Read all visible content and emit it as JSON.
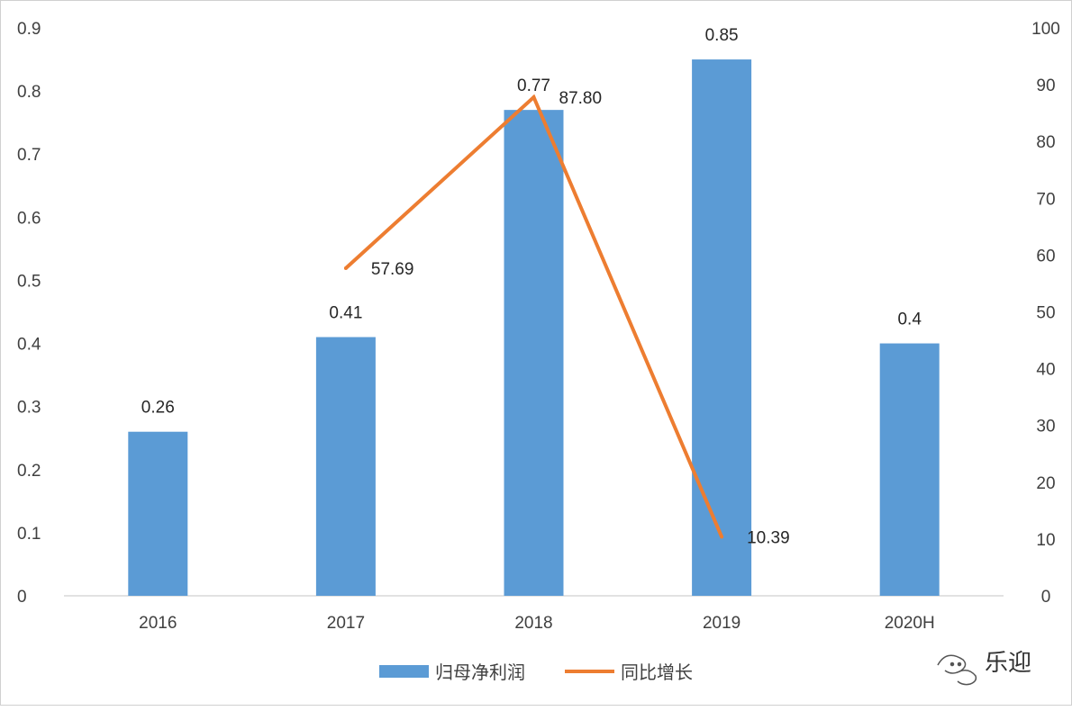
{
  "chart_data": {
    "type": "bar",
    "categories": [
      "2016",
      "2017",
      "2018",
      "2019",
      "2020H"
    ],
    "series": [
      {
        "name": "归母净利润",
        "type": "bar",
        "axis": "left",
        "values": [
          0.26,
          0.41,
          0.77,
          0.85,
          0.4
        ],
        "labels": [
          "0.26",
          "0.41",
          "0.77",
          "0.85",
          "0.4"
        ]
      },
      {
        "name": "同比增长",
        "type": "line",
        "axis": "right",
        "values": [
          null,
          57.69,
          87.8,
          10.39,
          null
        ],
        "labels": [
          "",
          "57.69",
          "87.80",
          "10.39",
          ""
        ]
      }
    ],
    "y_left": {
      "ylim": [
        0,
        0.9
      ],
      "ticks": [
        "0",
        "0.1",
        "0.2",
        "0.3",
        "0.4",
        "0.5",
        "0.6",
        "0.7",
        "0.8",
        "0.9"
      ]
    },
    "y_right": {
      "ylim": [
        0,
        100
      ],
      "ticks": [
        "0",
        "10",
        "20",
        "30",
        "40",
        "50",
        "60",
        "70",
        "80",
        "90",
        "100"
      ]
    },
    "grid": false,
    "legend_position": "bottom",
    "colors": {
      "bar": "#5b9bd5",
      "line": "#ed7d31",
      "axis": "#d9d9d9"
    }
  },
  "watermark": {
    "text": "乐迎"
  }
}
